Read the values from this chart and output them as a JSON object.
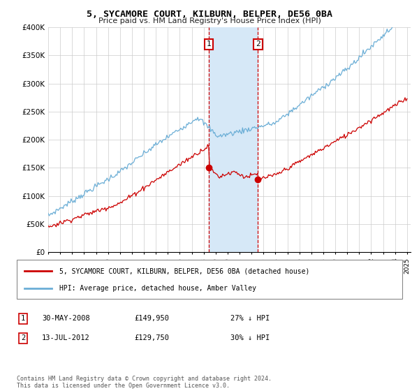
{
  "title": "5, SYCAMORE COURT, KILBURN, BELPER, DE56 0BA",
  "subtitle": "Price paid vs. HM Land Registry's House Price Index (HPI)",
  "legend_label_red": "5, SYCAMORE COURT, KILBURN, BELPER, DE56 0BA (detached house)",
  "legend_label_blue": "HPI: Average price, detached house, Amber Valley",
  "annotation1_label": "1",
  "annotation1_date": "30-MAY-2008",
  "annotation1_price": "£149,950",
  "annotation1_hpi": "27% ↓ HPI",
  "annotation2_label": "2",
  "annotation2_date": "13-JUL-2012",
  "annotation2_price": "£129,750",
  "annotation2_hpi": "30% ↓ HPI",
  "footnote": "Contains HM Land Registry data © Crown copyright and database right 2024.\nThis data is licensed under the Open Government Licence v3.0.",
  "hpi_color": "#6baed6",
  "price_color": "#cc0000",
  "shading_color": "#d6e8f7",
  "annotation_box_color": "#cc0000",
  "ylim_min": 0,
  "ylim_max": 400000,
  "year_start": 1995,
  "year_end": 2025,
  "transaction1_year": 2008.42,
  "transaction1_value": 149950,
  "transaction2_year": 2012.54,
  "transaction2_value": 129750
}
